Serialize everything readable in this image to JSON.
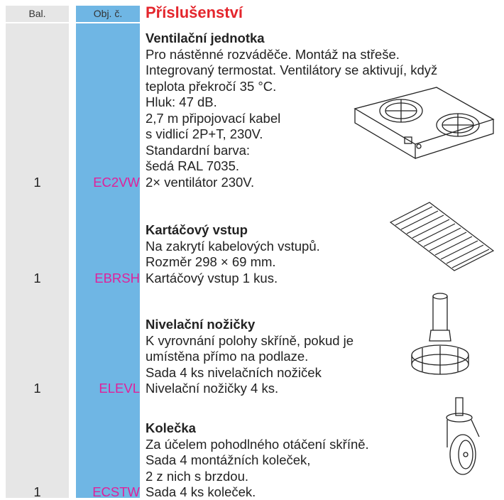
{
  "header": {
    "qty_label": "Bal.",
    "code_label": "Obj. č.",
    "title": "Příslušenství"
  },
  "items": [
    {
      "qty": "1",
      "code": "EC2VW",
      "title": "Ventilační jednotka",
      "lines": [
        "Pro nástěnné rozváděče. Montáž na střeše.",
        "Integrovaný termostat. Ventilátory se aktivují, když",
        "teplota překročí 35 °C.",
        "Hluk: 47 dB.",
        "2,7 m připojovací kabel",
        "s vidlicí 2P+T, 230V.",
        "Standardní barva:",
        "šedá RAL 7035.",
        "2× ventilátor 230V."
      ]
    },
    {
      "qty": "1",
      "code": "EBRSH",
      "title": "Kartáčový vstup",
      "lines": [
        "Na zakrytí kabelových vstupů.",
        "Rozměr 298 × 69 mm.",
        "Kartáčový vstup 1 kus."
      ]
    },
    {
      "qty": "1",
      "code": "ELEVL",
      "title": "Nivelační nožičky",
      "lines": [
        "K vyrovnání polohy skříně, pokud je",
        "umístěna přímo na podlaze.",
        "Sada 4 ks nivelačních nožiček",
        "Nivelační nožičky 4 ks."
      ]
    },
    {
      "qty": "1",
      "code": "ECSTW",
      "title": "Kolečka",
      "lines": [
        "Za účelem pohodlného otáčení skříně.",
        "Sada 4 montážních koleček,",
        "2 z nich s brzdou.",
        "Sada 4 ks koleček."
      ]
    }
  ]
}
